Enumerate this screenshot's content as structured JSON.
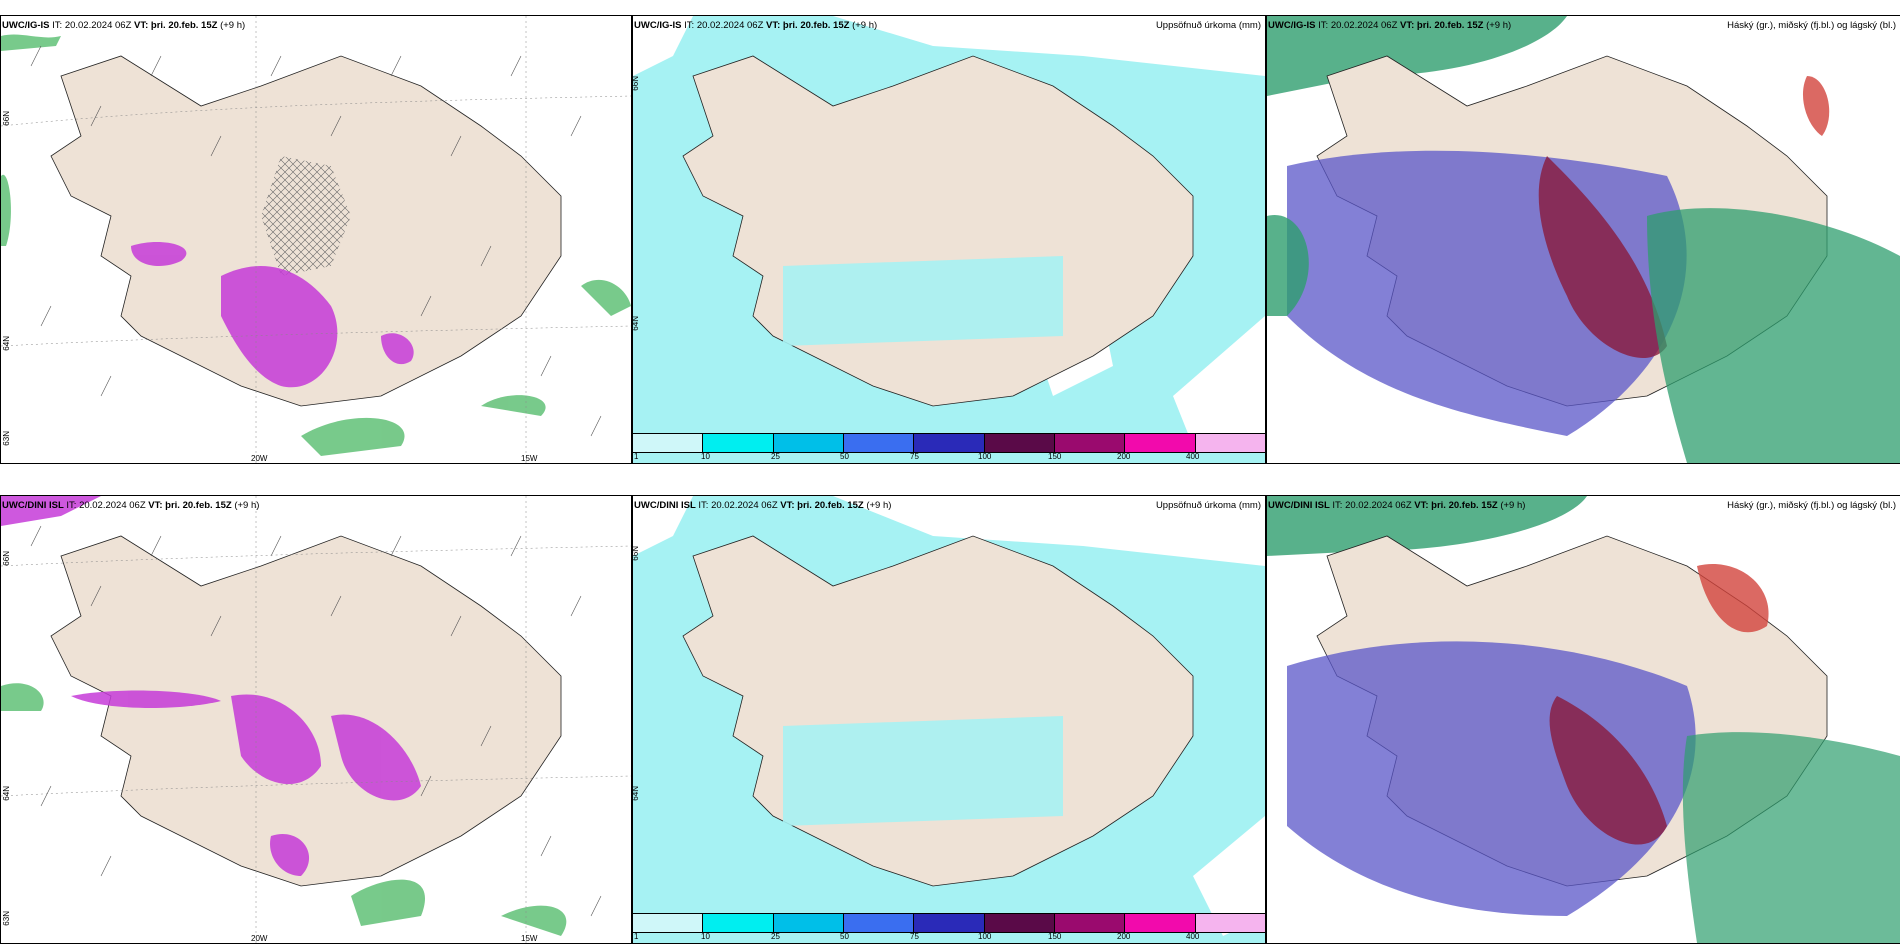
{
  "panels": {
    "p1": {
      "model": "UWC/IG-IS",
      "it_label": "IT:",
      "it": "20.02.2024 06Z",
      "vt_label": "VT:",
      "vt": "þri. 20.feb. 15Z",
      "lead": "(+9 h)",
      "right_title": "",
      "lon_labels": [
        "20W",
        "15W"
      ],
      "lat_labels": [
        "66N",
        "64N",
        "63N"
      ]
    },
    "p2": {
      "model": "UWC/IG-IS",
      "it_label": "IT:",
      "it": "20.02.2024 06Z",
      "vt_label": "VT:",
      "vt": "þri. 20.feb. 15Z",
      "lead": "(+9 h)",
      "right_title": "Uppsöfnuð úrkoma (mm)",
      "lat_labels": [
        "66N",
        "64N"
      ]
    },
    "p3": {
      "model": "UWC/IG-IS",
      "it_label": "IT:",
      "it": "20.02.2024 06Z",
      "vt_label": "VT:",
      "vt": "þri. 20.feb. 15Z",
      "lead": "(+9 h)",
      "right_title": "Háský (gr.), miðský (fj.bl.) og lágský (bl.)"
    },
    "p4": {
      "model": "UWC/DINI ISL",
      "it_label": "IT:",
      "it": "20.02.2024 06Z",
      "vt_label": "VT:",
      "vt": "þri. 20.feb. 15Z",
      "lead": "(+9 h)",
      "right_title": "",
      "lon_labels": [
        "20W",
        "15W"
      ],
      "lat_labels": [
        "66N",
        "64N",
        "63N"
      ]
    },
    "p5": {
      "model": "UWC/DINI ISL",
      "it_label": "IT:",
      "it": "20.02.2024 06Z",
      "vt_label": "VT:",
      "vt": "þri. 20.feb. 15Z",
      "lead": "(+9 h)",
      "right_title": "Uppsöfnuð úrkoma (mm)",
      "lat_labels": [
        "66N",
        "64N"
      ]
    },
    "p6": {
      "model": "UWC/DINI ISL",
      "it_label": "IT:",
      "it": "20.02.2024 06Z",
      "vt_label": "VT:",
      "vt": "þri. 20.feb. 15Z",
      "lead": "(+9 h)",
      "right_title": "Háský (gr.), miðský (fj.bl.) og lágský (bl.)"
    }
  },
  "colorbar": {
    "labels": [
      "1",
      "10",
      "25",
      "50",
      "75",
      "100",
      "150",
      "200",
      "400"
    ],
    "colors": [
      "#cff7f9",
      "#00eef0",
      "#00bfe8",
      "#3a6ef0",
      "#2a2ab8",
      "#5a0a48",
      "#9a0a6e",
      "#f20aac",
      "#f5b4ee"
    ]
  },
  "colors": {
    "land": "#eee2d6",
    "precip_light": "#a6f2f3",
    "wind_green": "#3fb35a",
    "snow_purple": "#c63bd8",
    "high_cloud": "#2e9e6e",
    "mid_cloud": "#5a55c8",
    "low_cloud": "#8a1a3c"
  }
}
